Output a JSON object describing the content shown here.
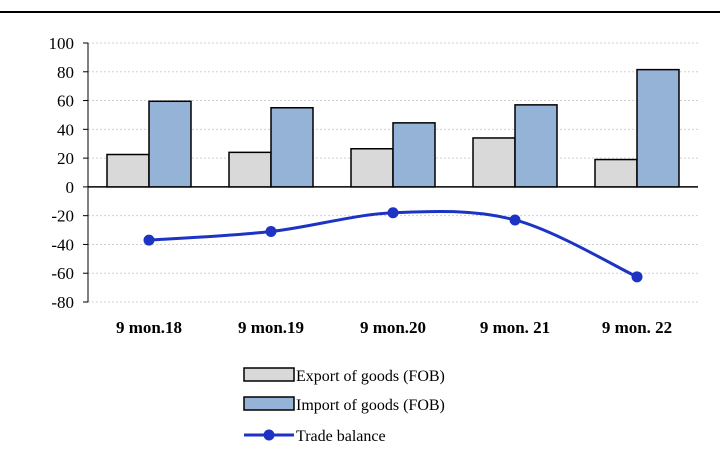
{
  "chart_data": {
    "type": "bar",
    "categories": [
      "9 mon.18",
      "9 mon.19",
      "9 mon.20",
      "9 mon. 21",
      "9 mon. 22"
    ],
    "series": [
      {
        "name": "Export of goods (FOB)",
        "kind": "bar",
        "color": "#d9d9d9",
        "values": [
          22.5,
          24,
          26.5,
          34,
          19
        ]
      },
      {
        "name": "Import of goods (FOB)",
        "kind": "bar",
        "color": "#95b3d7",
        "values": [
          59.5,
          55,
          44.5,
          57,
          81.5
        ]
      },
      {
        "name": "Trade balance",
        "kind": "line",
        "color": "#1c33c4",
        "values": [
          -37,
          -31,
          -18,
          -23,
          -62.5
        ]
      }
    ],
    "ylim": [
      -80,
      100
    ],
    "yticks": [
      100,
      80,
      60,
      40,
      20,
      0,
      -20,
      -40,
      -60,
      -80
    ],
    "title": "",
    "xlabel": "",
    "ylabel": "",
    "grid": true,
    "legend_position": "bottom"
  }
}
